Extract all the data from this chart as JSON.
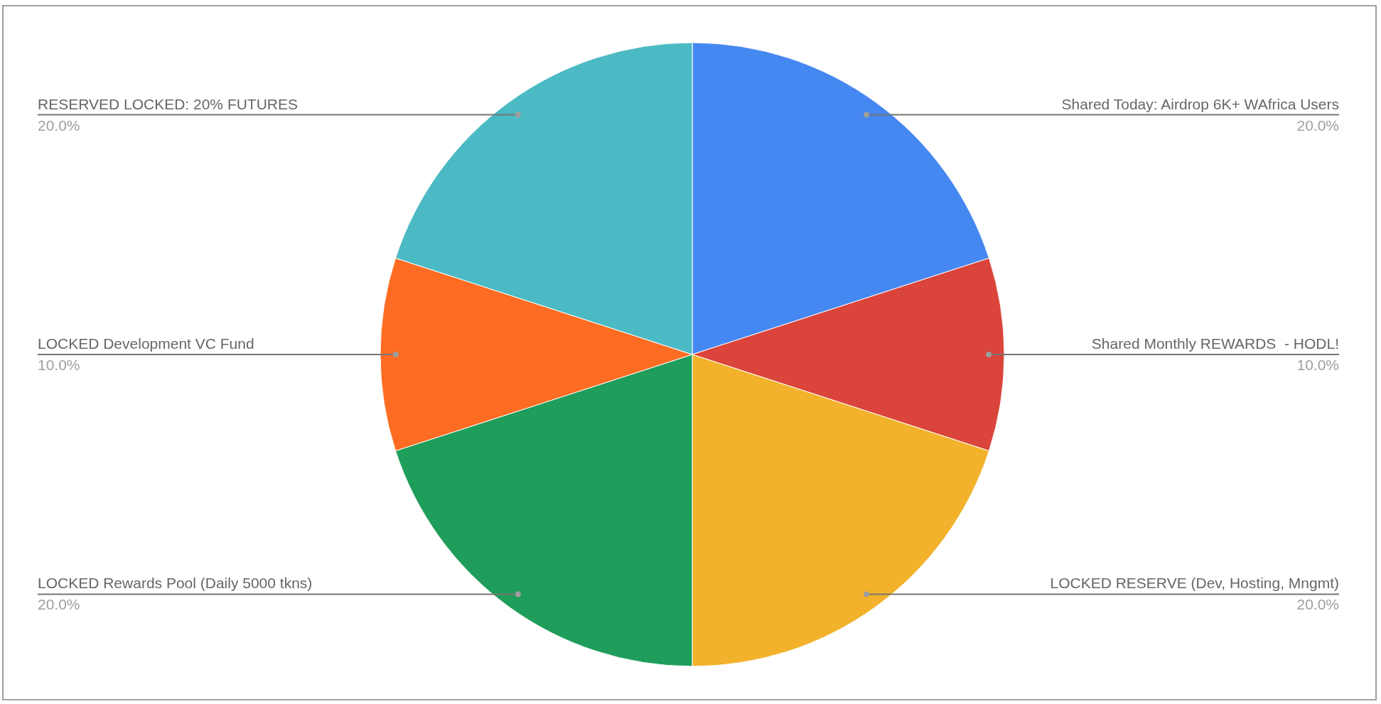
{
  "chart_data": {
    "type": "pie",
    "categories": [
      "Shared Today: Airdrop 6K+ WAfrica Users",
      "Shared Monthly REWARDS  - HODL!",
      "LOCKED RESERVE (Dev, Hosting, Mngmt)",
      "LOCKED Rewards Pool (Daily 5000 tkns)",
      "LOCKED Development VC Fund",
      "RESERVED LOCKED: 20% FUTURES"
    ],
    "values": [
      20,
      10,
      20,
      20,
      10,
      20
    ],
    "colors": [
      "#4688f1",
      "#da443a",
      "#f2b22b",
      "#1f9d5a",
      "#fd6c22",
      "#4bbac4"
    ],
    "value_labels": [
      "20.0%",
      "10.0%",
      "20.0%",
      "20.0%",
      "10.0%",
      "20.0%"
    ]
  }
}
